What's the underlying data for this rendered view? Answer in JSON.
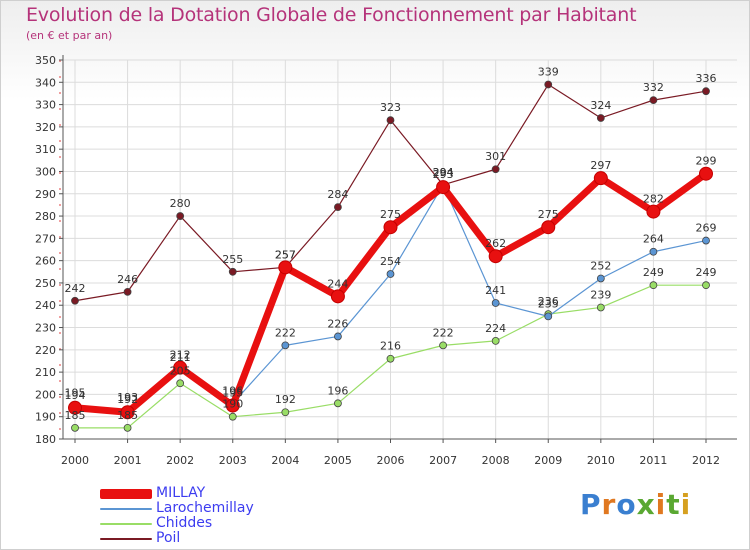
{
  "title": "Evolution de la Dotation Globale de Fonctionnement par Habitant",
  "subtitle": "(en € et par an)",
  "logo_text": "Proxiti",
  "chart_data": {
    "type": "line",
    "x": [
      "2000",
      "2001",
      "2002",
      "2003",
      "2004",
      "2005",
      "2006",
      "2007",
      "2008",
      "2009",
      "2010",
      "2011",
      "2012"
    ],
    "ylim": [
      180,
      350
    ],
    "yticks": [
      180,
      190,
      200,
      210,
      220,
      230,
      240,
      250,
      260,
      270,
      280,
      290,
      300,
      310,
      320,
      330,
      340,
      350
    ],
    "series": [
      {
        "name": "MILLAY",
        "color": "#e81010",
        "values": [
          194,
          192,
          212,
          195,
          257,
          244,
          275,
          293,
          262,
          275,
          297,
          282,
          299
        ],
        "labels": [
          "194",
          "192",
          "212",
          "195",
          "257",
          "244",
          "275",
          "293",
          "262",
          "275",
          "297",
          "282",
          "299"
        ]
      },
      {
        "name": "Larochemillay",
        "color": "#5b95d3",
        "values": [
          195,
          193,
          211,
          196,
          222,
          226,
          254,
          294,
          241,
          235,
          252,
          264,
          269
        ],
        "labels": [
          "195",
          "193",
          "211",
          "196",
          "222",
          "226",
          "254",
          "294",
          "241",
          "235",
          "252",
          "264",
          "269"
        ]
      },
      {
        "name": "Chiddes",
        "color": "#99dd66",
        "values": [
          185,
          185,
          205,
          190,
          192,
          196,
          216,
          222,
          224,
          236,
          239,
          249,
          249
        ],
        "labels": [
          "185",
          "185",
          "205",
          "190",
          "192",
          "196",
          "216",
          "222",
          "224",
          "236",
          "239",
          "249",
          "249"
        ]
      },
      {
        "name": "Poil",
        "color": "#7a1a24",
        "values": [
          242,
          246,
          280,
          255,
          257,
          284,
          323,
          294,
          301,
          339,
          324,
          332,
          336
        ],
        "labels": [
          "242",
          "246",
          "280",
          "255",
          "257",
          "284",
          "323",
          "294",
          "301",
          "339",
          "324",
          "332",
          "336"
        ]
      }
    ]
  }
}
